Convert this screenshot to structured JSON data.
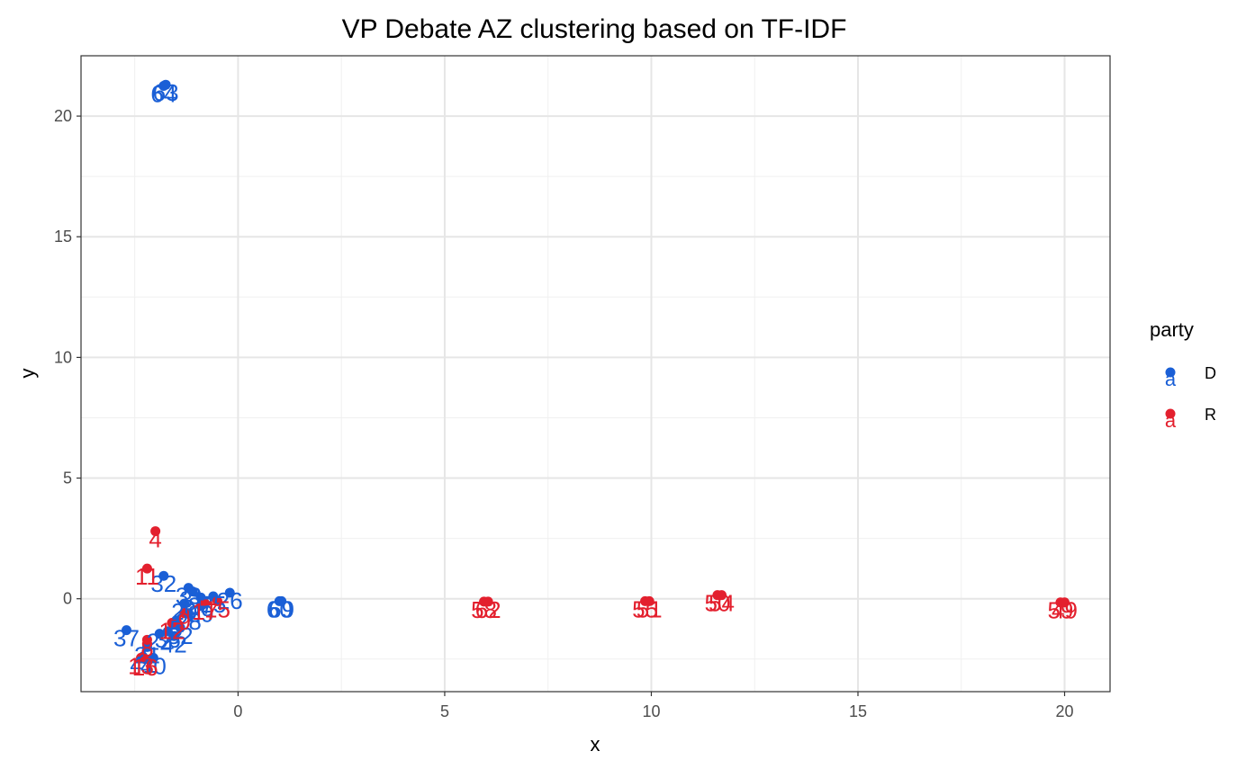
{
  "chart_data": {
    "type": "scatter",
    "title": "VP Debate AZ clustering based on TF-IDF",
    "xlabel": "x",
    "ylabel": "y",
    "xlim": [
      -3.8,
      21.1
    ],
    "ylim": [
      -3.85,
      22.5
    ],
    "x_ticks": [
      0,
      5,
      10,
      15,
      20
    ],
    "x_tick_labels": [
      "0",
      "5",
      "10",
      "15",
      "20"
    ],
    "y_ticks": [
      0,
      5,
      10,
      15,
      20
    ],
    "y_tick_labels": [
      "0",
      "5",
      "10",
      "15",
      "20"
    ],
    "x_minor_ticks": [
      -2.5,
      2.5,
      7.5,
      12.5,
      17.5
    ],
    "y_minor_ticks": [
      -2.5,
      2.5,
      7.5,
      12.5,
      17.5
    ],
    "grid": true,
    "legend": {
      "title": "party",
      "position": "right",
      "key_glyph": "a",
      "entries": [
        {
          "label": "D",
          "color": "#1a5fd6"
        },
        {
          "label": "R",
          "color": "#e3202e"
        }
      ]
    },
    "series": [
      {
        "name": "D",
        "color": "#1a5fd6",
        "points": [
          {
            "x": -1.75,
            "y": 21.3,
            "label": "63"
          },
          {
            "x": -1.8,
            "y": 21.25,
            "label": "64"
          },
          {
            "x": -1.8,
            "y": 0.95,
            "label": "32"
          },
          {
            "x": -1.2,
            "y": 0.45,
            "label": "33"
          },
          {
            "x": -1.1,
            "y": 0.3,
            "label": "31"
          },
          {
            "x": -0.2,
            "y": 0.25,
            "label": "26"
          },
          {
            "x": -0.6,
            "y": 0.1,
            "label": "25"
          },
          {
            "x": -0.9,
            "y": 0.05,
            "label": "27"
          },
          {
            "x": -1.3,
            "y": -0.2,
            "label": "20"
          },
          {
            "x": -0.9,
            "y": -0.3,
            "label": "29"
          },
          {
            "x": 1.0,
            "y": -0.1,
            "label": "60"
          },
          {
            "x": 1.05,
            "y": -0.1,
            "label": "69"
          },
          {
            "x": -1.2,
            "y": -0.6,
            "label": "28"
          },
          {
            "x": -1.5,
            "y": -0.9,
            "label": "5"
          },
          {
            "x": -1.4,
            "y": -1.2,
            "label": "52"
          },
          {
            "x": -1.7,
            "y": -1.35,
            "label": "36"
          },
          {
            "x": -1.9,
            "y": -1.45,
            "label": "22"
          },
          {
            "x": -1.55,
            "y": -1.55,
            "label": "42"
          },
          {
            "x": -2.7,
            "y": -1.3,
            "label": "37"
          },
          {
            "x": -2.2,
            "y": -2.0,
            "label": "21"
          },
          {
            "x": -2.05,
            "y": -2.45,
            "label": "40"
          },
          {
            "x": -2.3,
            "y": -2.4,
            "label": "41"
          }
        ]
      },
      {
        "name": "R",
        "color": "#e3202e",
        "points": [
          {
            "x": -2.0,
            "y": 2.8,
            "label": "4"
          },
          {
            "x": -2.2,
            "y": 1.25,
            "label": "11"
          },
          {
            "x": -0.5,
            "y": -0.1,
            "label": "15"
          },
          {
            "x": -0.8,
            "y": -0.2,
            "label": "17"
          },
          {
            "x": -1.3,
            "y": -0.6,
            "label": "9"
          },
          {
            "x": -1.6,
            "y": -1.0,
            "label": "12"
          },
          {
            "x": -2.2,
            "y": -1.7,
            "label": "8"
          },
          {
            "x": -2.35,
            "y": -2.45,
            "label": "13"
          },
          {
            "x": -2.25,
            "y": -2.5,
            "label": "16"
          },
          {
            "x": 5.95,
            "y": -0.12,
            "label": "58"
          },
          {
            "x": 6.05,
            "y": -0.12,
            "label": "62"
          },
          {
            "x": 9.85,
            "y": -0.1,
            "label": "55"
          },
          {
            "x": 9.95,
            "y": -0.1,
            "label": "51"
          },
          {
            "x": 11.6,
            "y": 0.15,
            "label": "50"
          },
          {
            "x": 11.7,
            "y": 0.15,
            "label": "54"
          },
          {
            "x": 19.9,
            "y": -0.15,
            "label": "59"
          },
          {
            "x": 20.0,
            "y": -0.15,
            "label": "49"
          }
        ]
      }
    ]
  }
}
